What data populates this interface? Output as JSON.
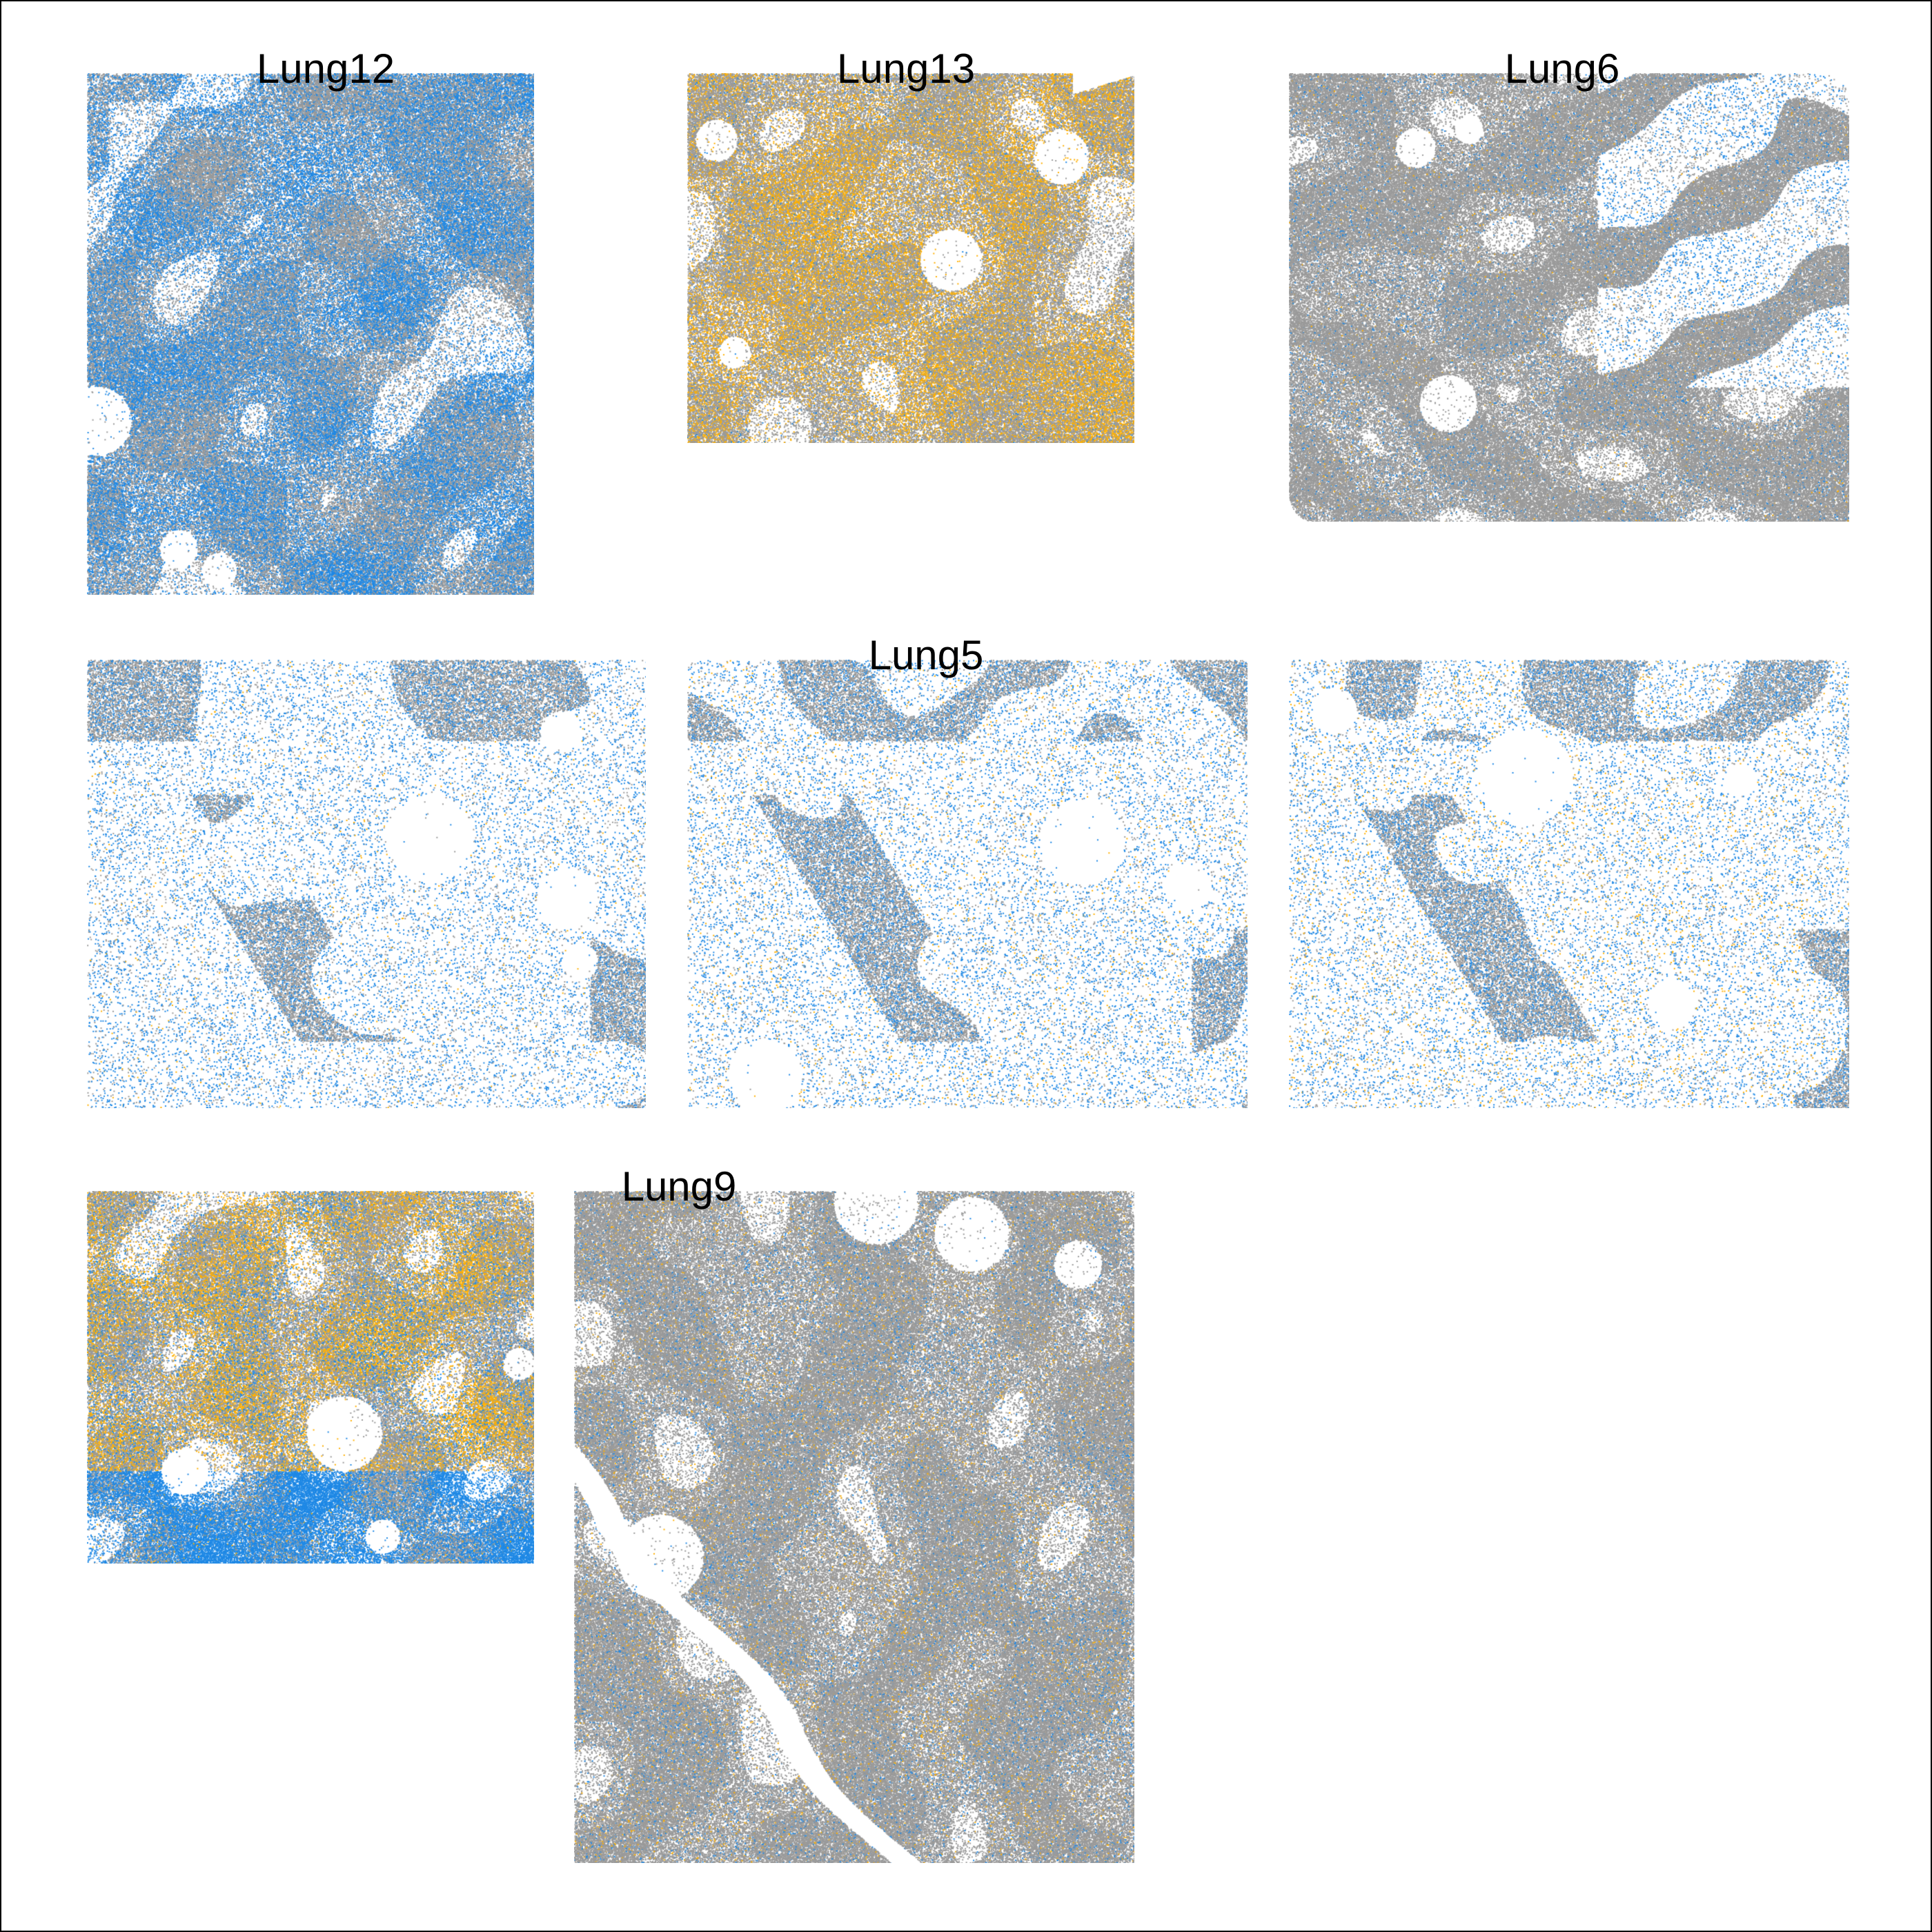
{
  "colors": {
    "background": "#ffffff",
    "other_cells": "#9a9a9a",
    "blue_cells": "#1e88e5",
    "orange_cells": "#ffb000"
  },
  "chart_data": [
    {
      "type": "scatter",
      "title": "Lung12",
      "shape": "rect",
      "density": 1.0,
      "blue": 0.45,
      "orange": 0.0,
      "texture": "patchy"
    },
    {
      "type": "scatter",
      "title": "Lung13",
      "shape": "rect-notch",
      "density": 1.0,
      "blue": 0.03,
      "orange": 0.3,
      "texture": "patchy"
    },
    {
      "type": "scatter",
      "title": "Lung6",
      "shape": "rect-round",
      "density": 1.0,
      "blue": 0.05,
      "orange": 0.01,
      "texture": "dense-gray"
    },
    {
      "type": "scatter",
      "title": "",
      "shape": "rect",
      "density": 0.55,
      "blue": 0.55,
      "orange": 0.01,
      "texture": "stroma"
    },
    {
      "type": "scatter",
      "title": "Lung5",
      "shape": "rect",
      "density": 0.55,
      "blue": 0.55,
      "orange": 0.02,
      "texture": "stroma"
    },
    {
      "type": "scatter",
      "title": "",
      "shape": "rect",
      "density": 0.55,
      "blue": 0.55,
      "orange": 0.03,
      "texture": "stroma-hole"
    },
    {
      "type": "scatter",
      "title": "",
      "shape": "rect",
      "density": 1.0,
      "blue": 0.15,
      "orange": 0.3,
      "texture": "patchy-bottom-blue"
    },
    {
      "type": "scatter",
      "title": "Lung9",
      "shape": "rect",
      "density": 1.0,
      "blue": 0.06,
      "orange": 0.03,
      "texture": "diagonal-vessel"
    }
  ]
}
